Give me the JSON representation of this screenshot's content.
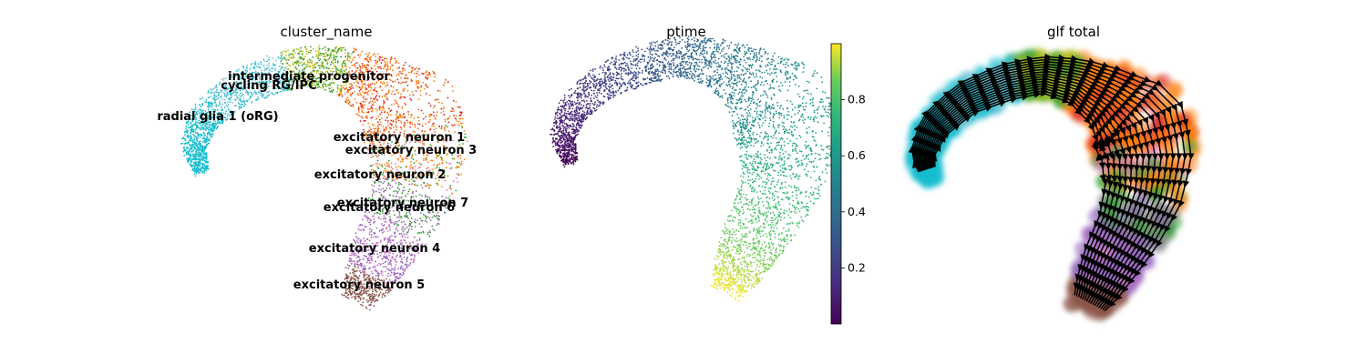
{
  "panels": [
    {
      "id": "cluster",
      "title": "cluster_name",
      "type": "scatter",
      "legend": "on data",
      "clusters": [
        {
          "name": "radial glia 1 (oRG)",
          "color": "#17becf"
        },
        {
          "name": "cycling RG/IPC",
          "color": "#6ec3d6"
        },
        {
          "name": "intermediate progenitor",
          "color": "#bcbd22"
        },
        {
          "name": "excitatory neuron 1",
          "color": "#ff7f0e"
        },
        {
          "name": "excitatory neuron 3",
          "color": "#d62728"
        },
        {
          "name": "excitatory neuron 2",
          "color": "#e377c2"
        },
        {
          "name": "excitatory neuron 7",
          "color": "#2ca02c"
        },
        {
          "name": "excitatory neuron 6",
          "color": "#7f7f7f"
        },
        {
          "name": "excitatory neuron 4",
          "color": "#9467bd"
        },
        {
          "name": "excitatory neuron 5",
          "color": "#8c564b"
        }
      ]
    },
    {
      "id": "ptime",
      "title": "ptime",
      "type": "scatter",
      "colormap": "viridis",
      "colorbar": {
        "min": 0.0,
        "max": 1.0,
        "ticks": [
          0.2,
          0.4,
          0.6,
          0.8
        ]
      }
    },
    {
      "id": "velocity",
      "title": "glf total",
      "type": "streamplot",
      "stream_color": "#000000"
    }
  ],
  "chart_data": {
    "type": "scatter",
    "panels": [
      {
        "title": "cluster_name",
        "color_by": "cluster",
        "categories": [
          "radial glia 1 (oRG)",
          "cycling RG/IPC",
          "intermediate progenitor",
          "excitatory neuron 1",
          "excitatory neuron 3",
          "excitatory neuron 2",
          "excitatory neuron 7",
          "excitatory neuron 6",
          "excitatory neuron 4",
          "excitatory neuron 5"
        ]
      },
      {
        "title": "ptime",
        "color_by": "pseudotime",
        "colormap": "viridis",
        "range": [
          0.0,
          1.0
        ],
        "ticks": [
          0.2,
          0.4,
          0.6,
          0.8
        ]
      },
      {
        "title": "glf total",
        "color_by": "cluster",
        "overlay": "velocity streamlines"
      }
    ]
  }
}
